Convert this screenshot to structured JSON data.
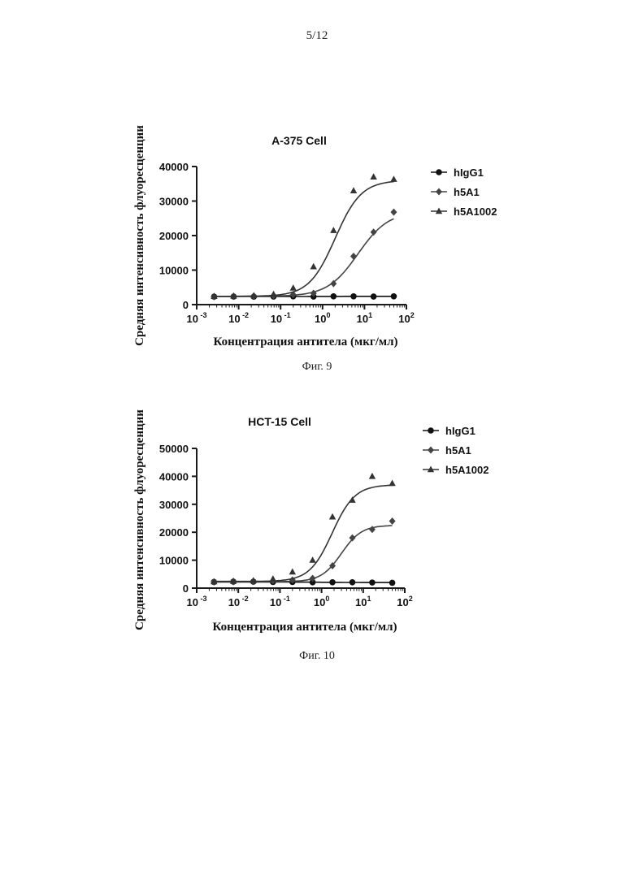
{
  "page": {
    "number": "5/12"
  },
  "figures": [
    {
      "caption": "Фиг. 9"
    },
    {
      "caption": "Фиг. 10"
    }
  ],
  "colors": {
    "ink": "#1a1a1a",
    "hIgG1": "#111111",
    "h5A1": "#444444",
    "h5A1002": "#333333"
  },
  "chart_data": [
    {
      "type": "scatter",
      "title": "A-375 Cell",
      "xlabel": "Концентрация антитела (мкг/мл)",
      "ylabel": "Средняя интенсивность флуоресценции",
      "xscale": "log",
      "xlim": [
        0.001,
        100
      ],
      "ylim": [
        0,
        40000
      ],
      "x_ticks": [
        "10-3",
        "10-2",
        "10-1",
        "100",
        "101",
        "102"
      ],
      "y_ticks": [
        "0",
        "10000",
        "20000",
        "30000",
        "40000"
      ],
      "legend_position": "right",
      "fitted_curves": true,
      "series": [
        {
          "name": "hIgG1",
          "marker": "circle",
          "x": [
            0.0026,
            0.0076,
            0.023,
            0.068,
            0.2,
            0.61,
            1.83,
            5.5,
            16.5,
            50
          ],
          "y": [
            2300,
            2350,
            2300,
            2350,
            2400,
            2350,
            2400,
            2400,
            2350,
            2400
          ],
          "fit": {
            "bottom": 2350,
            "top": 2400,
            "ec50": 1,
            "hill": 1
          }
        },
        {
          "name": "h5A1",
          "marker": "diamond",
          "x": [
            0.0026,
            0.0076,
            0.023,
            0.068,
            0.2,
            0.61,
            1.83,
            5.5,
            16.5,
            50
          ],
          "y": [
            2300,
            2400,
            2500,
            2600,
            2900,
            3300,
            6100,
            14000,
            21000,
            26800
          ],
          "fit": {
            "bottom": 2400,
            "top": 27000,
            "ec50": 7,
            "hill": 1.2
          }
        },
        {
          "name": "h5A1002",
          "marker": "triangle",
          "x": [
            0.0026,
            0.0076,
            0.023,
            0.068,
            0.2,
            0.61,
            1.83,
            5.5,
            16.5,
            50
          ],
          "y": [
            2400,
            2500,
            2600,
            3000,
            4800,
            11000,
            21500,
            33000,
            37000,
            36300
          ],
          "fit": {
            "bottom": 2400,
            "top": 36000,
            "ec50": 2,
            "hill": 1.4
          }
        }
      ]
    },
    {
      "type": "scatter",
      "title": "HCT-15 Cell",
      "xlabel": "Концентрация антитела (мкг/мл)",
      "ylabel": "Средняя интенсивность флуоресценции",
      "xscale": "log",
      "xlim": [
        0.001,
        100
      ],
      "ylim": [
        0,
        50000
      ],
      "x_ticks": [
        "10-3",
        "10-2",
        "10-1",
        "100",
        "101",
        "102"
      ],
      "y_ticks": [
        "0",
        "10000",
        "20000",
        "30000",
        "40000",
        "50000"
      ],
      "legend_position": "right",
      "fitted_curves": true,
      "series": [
        {
          "name": "hIgG1",
          "marker": "circle",
          "x": [
            0.0026,
            0.0076,
            0.023,
            0.068,
            0.2,
            0.61,
            1.83,
            5.5,
            16.5,
            50
          ],
          "y": [
            2200,
            2300,
            2300,
            2200,
            2200,
            2100,
            2100,
            2100,
            2000,
            1900
          ],
          "fit": {
            "bottom": 2200,
            "top": 2000,
            "ec50": 1,
            "hill": 1
          }
        },
        {
          "name": "h5A1",
          "marker": "diamond",
          "x": [
            0.0026,
            0.0076,
            0.023,
            0.068,
            0.2,
            0.61,
            1.83,
            5.5,
            16.5,
            50
          ],
          "y": [
            2200,
            2300,
            2400,
            2600,
            2900,
            3500,
            8000,
            18000,
            21000,
            24000
          ],
          "fit": {
            "bottom": 2300,
            "top": 22500,
            "ec50": 3,
            "hill": 1.8
          }
        },
        {
          "name": "h5A1002",
          "marker": "triangle",
          "x": [
            0.0026,
            0.0076,
            0.023,
            0.068,
            0.2,
            0.61,
            1.83,
            5.5,
            16.5,
            50
          ],
          "y": [
            2300,
            2500,
            2700,
            3300,
            5800,
            10000,
            25500,
            31500,
            40000,
            37500
          ],
          "fit": {
            "bottom": 2400,
            "top": 37000,
            "ec50": 1.8,
            "hill": 1.6
          }
        }
      ]
    }
  ]
}
